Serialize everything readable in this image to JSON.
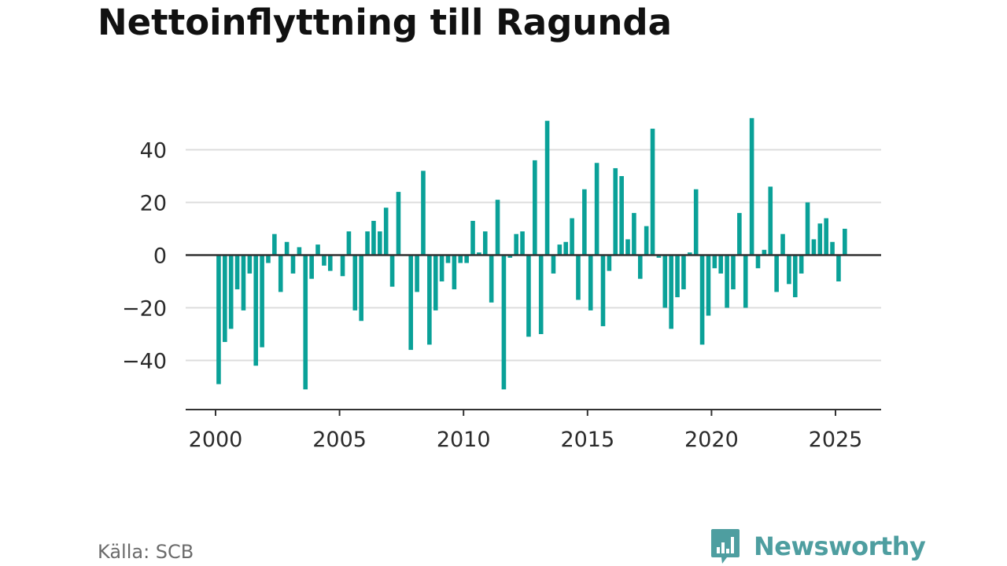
{
  "title": "Nettoinflyttning till Ragunda",
  "source": "Källa: SCB",
  "brand": {
    "name": "Newsworthy",
    "icon": "newsworthy-logo-icon",
    "color": "#4e9ea0"
  },
  "colors": {
    "bar": "#0aa198",
    "grid": "#dcdcdc",
    "axis": "#333333",
    "tick_text": "#2b2b2b"
  },
  "chart_data": {
    "type": "bar",
    "title": "",
    "xlabel": "",
    "ylabel": "",
    "grid": true,
    "legend": "none",
    "x_ticks": [
      "2000",
      "2005",
      "2010",
      "2015",
      "2020",
      "2025"
    ],
    "y_ticks": [
      "40",
      "20",
      "0",
      "−20",
      "−40"
    ],
    "xlim": [
      1999.0,
      2026.4
    ],
    "ylim": [
      -60,
      55
    ],
    "x": [
      2000.125,
      2000.375,
      2000.625,
      2000.875,
      2001.125,
      2001.375,
      2001.625,
      2001.875,
      2002.125,
      2002.375,
      2002.625,
      2002.875,
      2003.125,
      2003.375,
      2003.625,
      2003.875,
      2004.125,
      2004.375,
      2004.625,
      2004.875,
      2005.125,
      2005.375,
      2005.625,
      2005.875,
      2006.125,
      2006.375,
      2006.625,
      2006.875,
      2007.125,
      2007.375,
      2007.625,
      2007.875,
      2008.125,
      2008.375,
      2008.625,
      2008.875,
      2009.125,
      2009.375,
      2009.625,
      2009.875,
      2010.125,
      2010.375,
      2010.625,
      2010.875,
      2011.125,
      2011.375,
      2011.625,
      2011.875,
      2012.125,
      2012.375,
      2012.625,
      2012.875,
      2013.125,
      2013.375,
      2013.625,
      2013.875,
      2014.125,
      2014.375,
      2014.625,
      2014.875,
      2015.125,
      2015.375,
      2015.625,
      2015.875,
      2016.125,
      2016.375,
      2016.625,
      2016.875,
      2017.125,
      2017.375,
      2017.625,
      2017.875,
      2018.125,
      2018.375,
      2018.625,
      2018.875,
      2019.125,
      2019.375,
      2019.625,
      2019.875,
      2020.125,
      2020.375,
      2020.625,
      2020.875,
      2021.125,
      2021.375,
      2021.625,
      2021.875,
      2022.125,
      2022.375,
      2022.625,
      2022.875,
      2023.125,
      2023.375,
      2023.625,
      2023.875,
      2024.125,
      2024.375,
      2024.625,
      2024.875,
      2025.125,
      2025.375
    ],
    "values": [
      -49,
      -33,
      -28,
      -13,
      -21,
      -7,
      -42,
      -35,
      -3,
      8,
      -14,
      5,
      -7,
      3,
      -51,
      -9,
      4,
      -4,
      -6,
      0,
      -8,
      9,
      -21,
      -25,
      9,
      13,
      9,
      18,
      -12,
      24,
      0,
      -36,
      -14,
      32,
      -34,
      -21,
      -10,
      -3,
      -13,
      -3,
      -3,
      13,
      1,
      9,
      -18,
      21,
      -51,
      -1,
      8,
      9,
      -31,
      36,
      -30,
      51,
      -7,
      4,
      5,
      14,
      -17,
      25,
      -21,
      35,
      -27,
      -6,
      33,
      30,
      6,
      16,
      -9,
      11,
      48,
      -1,
      -20,
      -28,
      -16,
      -13,
      1,
      25,
      -34,
      -23,
      -5,
      -7,
      -20,
      -13,
      16,
      -20,
      52,
      -5,
      2,
      26,
      -14,
      8,
      -11,
      -16,
      -7,
      20,
      6,
      12,
      14,
      5,
      -10,
      10
    ]
  }
}
